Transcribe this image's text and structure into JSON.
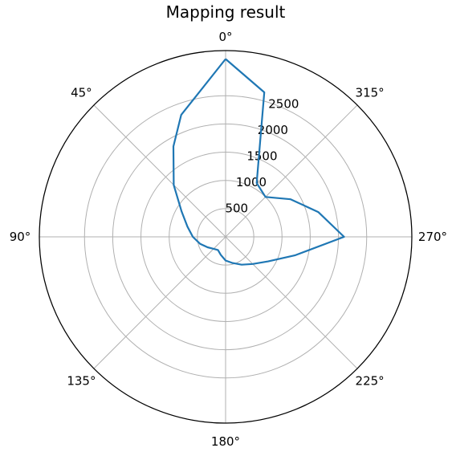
{
  "chart_data": {
    "type": "line",
    "projection": "polar",
    "title": "Mapping result",
    "theta_zero_location": "top",
    "theta_direction": "counterclockwise",
    "theta_ticks": [
      "0°",
      "45°",
      "90°",
      "135°",
      "180°",
      "225°",
      "270°",
      "315°"
    ],
    "theta_tick_values": [
      0,
      45,
      90,
      135,
      180,
      225,
      270,
      315
    ],
    "r_ticks": [
      "500",
      "1000",
      "1500",
      "2000",
      "2500"
    ],
    "r_tick_values": [
      500,
      1000,
      1500,
      2000,
      2500
    ],
    "rlim": [
      0,
      3300
    ],
    "grid": true,
    "line_color": "#1f77b4",
    "series": [
      {
        "theta": [
          0,
          20,
          30,
          45,
          60,
          75,
          90,
          105,
          120,
          135,
          150,
          165,
          180,
          195,
          210,
          225,
          240,
          255,
          270,
          285,
          300,
          315,
          330,
          345,
          360
        ],
        "r": [
          3150,
          2300,
          1850,
          1300,
          900,
          700,
          580,
          470,
          370,
          300,
          270,
          330,
          420,
          480,
          570,
          680,
          870,
          1270,
          2100,
          1700,
          1330,
          1000,
          1100,
          2650,
          3150
        ]
      }
    ]
  }
}
